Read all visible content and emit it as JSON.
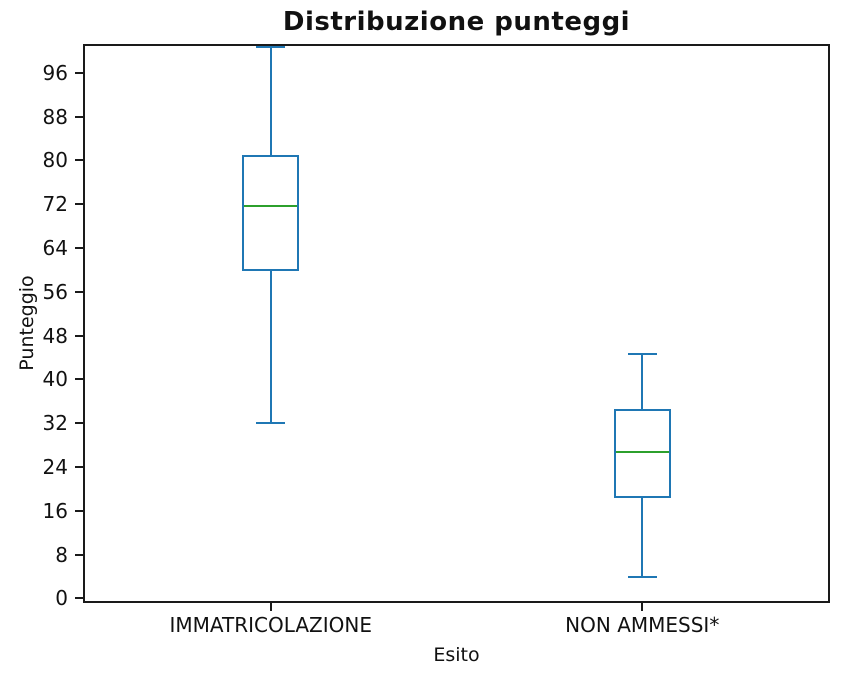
{
  "title": "Distribuzione punteggi",
  "chart_data": {
    "type": "boxplot",
    "title": "Distribuzione punteggi",
    "xlabel": "Esito",
    "ylabel": "Punteggio",
    "categories": [
      "IMMATRICOLAZIONE",
      "NON AMMESSI*"
    ],
    "yticks": [
      0,
      8,
      16,
      24,
      32,
      40,
      48,
      56,
      64,
      72,
      80,
      88,
      96
    ],
    "ylim": [
      -0.46,
      100.9
    ],
    "grid": false,
    "legend": null,
    "series": [
      {
        "name": "IMMATRICOLAZIONE",
        "whisker_low": 32,
        "q1": 59.8,
        "median": 71.6,
        "q3": 81.0,
        "whisker_high": 100.7,
        "whisker_high_clipped_at_top": true
      },
      {
        "name": "NON AMMESSI*",
        "whisker_low": 4,
        "q1": 18.4,
        "median": 26.8,
        "q3": 34.6,
        "whisker_high": 44.7,
        "whisker_high_clipped_at_top": false
      }
    ],
    "colors": {
      "box": "#1f77b4",
      "whisker": "#1f77b4",
      "cap": "#1f77b4",
      "median": "#2ca02c",
      "axis": "#1a1a1a",
      "text": "#111111",
      "background": "#ffffff"
    }
  }
}
